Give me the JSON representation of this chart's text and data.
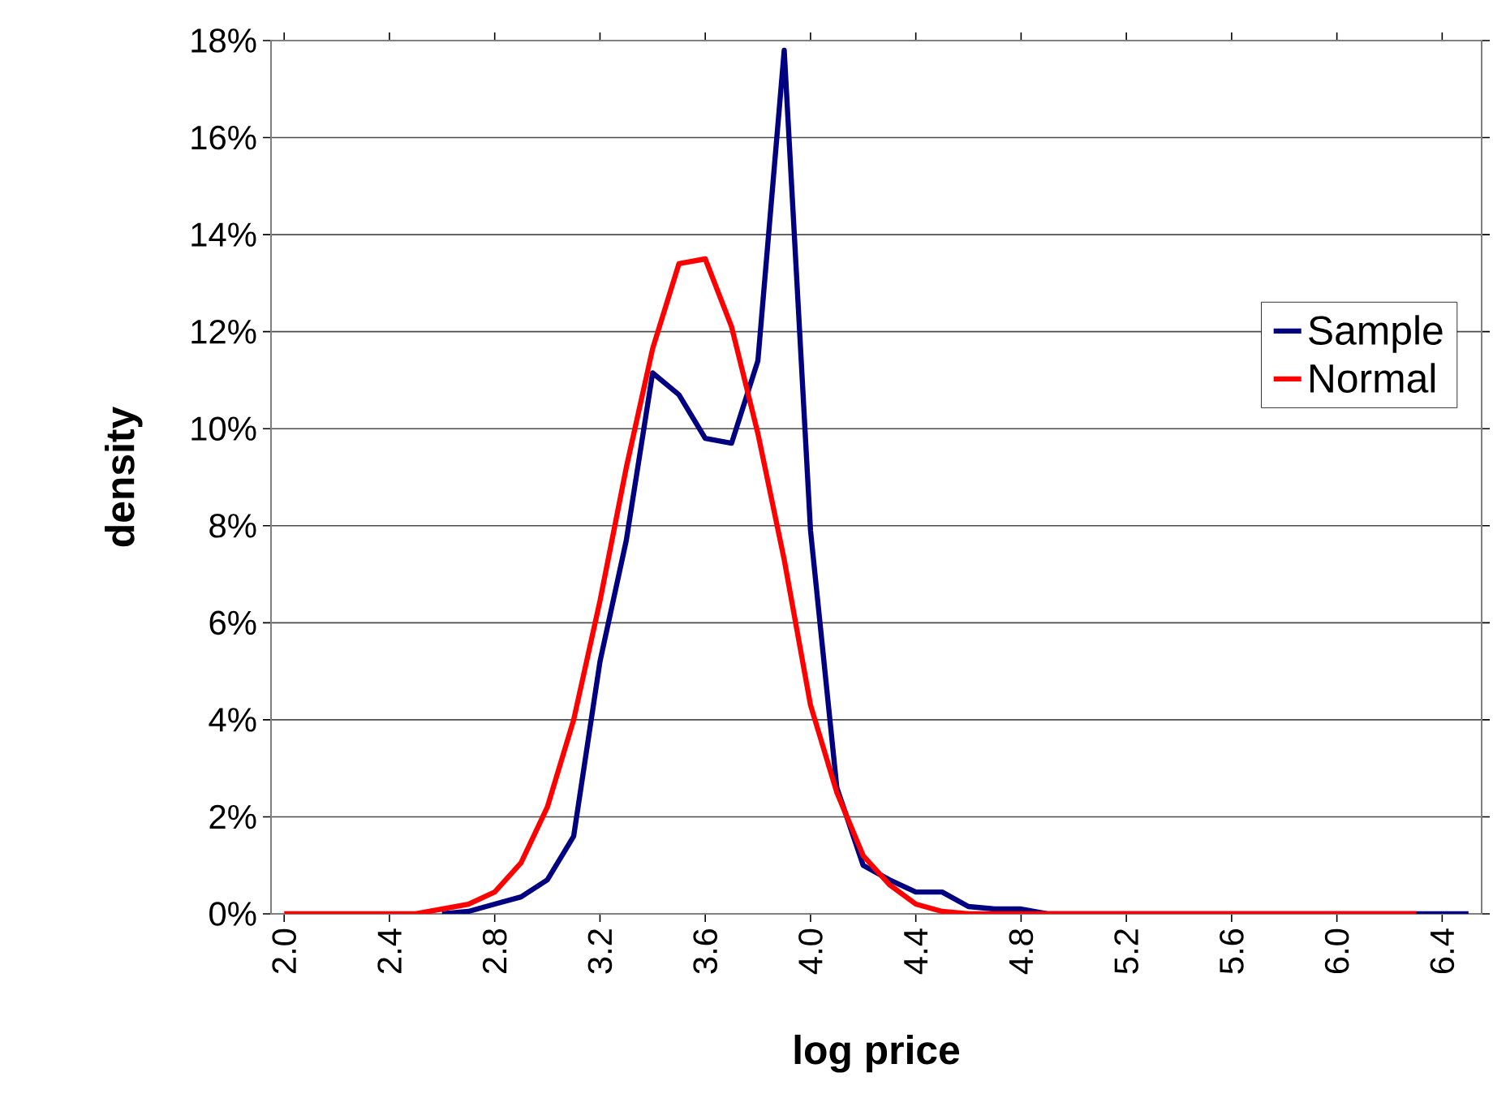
{
  "chart_data": {
    "type": "line",
    "xlabel": "log price",
    "ylabel": "density",
    "x": [
      2.0,
      2.1,
      2.2,
      2.3,
      2.4,
      2.5,
      2.6,
      2.7,
      2.8,
      2.9,
      3.0,
      3.1,
      3.2,
      3.3,
      3.4,
      3.5,
      3.6,
      3.7,
      3.8,
      3.9,
      4.0,
      4.1,
      4.2,
      4.3,
      4.4,
      4.5,
      4.6,
      4.7,
      4.8,
      4.9,
      5.0,
      5.1,
      5.2,
      5.3,
      5.4,
      5.5,
      5.6,
      5.7,
      5.8,
      5.9,
      6.0,
      6.1,
      6.2,
      6.3,
      6.4,
      6.5
    ],
    "series": [
      {
        "name": "Sample",
        "color": "#000080",
        "values": [
          null,
          null,
          null,
          null,
          null,
          null,
          0,
          0.05,
          0.2,
          0.35,
          0.7,
          1.6,
          5.2,
          7.7,
          11.15,
          10.7,
          9.8,
          9.7,
          11.4,
          17.8,
          7.9,
          2.6,
          1.0,
          0.7,
          0.45,
          0.45,
          0.15,
          0.1,
          0.1,
          0,
          0,
          0,
          0,
          0,
          0,
          0,
          0,
          0,
          0,
          0,
          0,
          0,
          0,
          0,
          0,
          0
        ]
      },
      {
        "name": "Normal",
        "color": "#ff0000",
        "values": [
          0,
          0,
          0,
          0,
          0,
          0,
          0.1,
          0.2,
          0.45,
          1.05,
          2.2,
          4.0,
          6.45,
          9.2,
          11.65,
          13.4,
          13.5,
          12.1,
          9.9,
          7.3,
          4.3,
          2.5,
          1.2,
          0.6,
          0.2,
          0.05,
          0,
          0,
          0,
          0,
          0,
          0,
          0,
          0,
          0,
          0,
          0,
          0,
          0,
          0,
          0,
          0,
          0,
          0,
          null,
          null
        ]
      }
    ],
    "xlim": [
      1.95,
      6.55
    ],
    "xticks": [
      {
        "value": 2.0,
        "label": "2.0"
      },
      {
        "value": 2.4,
        "label": "2.4"
      },
      {
        "value": 2.8,
        "label": "2.8"
      },
      {
        "value": 3.2,
        "label": "3.2"
      },
      {
        "value": 3.6,
        "label": "3.6"
      },
      {
        "value": 4.0,
        "label": "4.0"
      },
      {
        "value": 4.4,
        "label": "4.4"
      },
      {
        "value": 4.8,
        "label": "4.8"
      },
      {
        "value": 5.2,
        "label": "5.2"
      },
      {
        "value": 5.6,
        "label": "5.6"
      },
      {
        "value": 6.0,
        "label": "6.0"
      },
      {
        "value": 6.4,
        "label": "6.4"
      }
    ],
    "ylim": [
      0,
      18
    ],
    "yticks": [
      {
        "value": 0,
        "label": "0%"
      },
      {
        "value": 2,
        "label": "2%"
      },
      {
        "value": 4,
        "label": "4%"
      },
      {
        "value": 6,
        "label": "6%"
      },
      {
        "value": 8,
        "label": "8%"
      },
      {
        "value": 10,
        "label": "10%"
      },
      {
        "value": 12,
        "label": "12%"
      },
      {
        "value": 14,
        "label": "14%"
      },
      {
        "value": 16,
        "label": "16%"
      },
      {
        "value": 18,
        "label": "18%"
      }
    ],
    "grid": "y",
    "legend": "right",
    "marker": "none",
    "line_style": "solid"
  }
}
